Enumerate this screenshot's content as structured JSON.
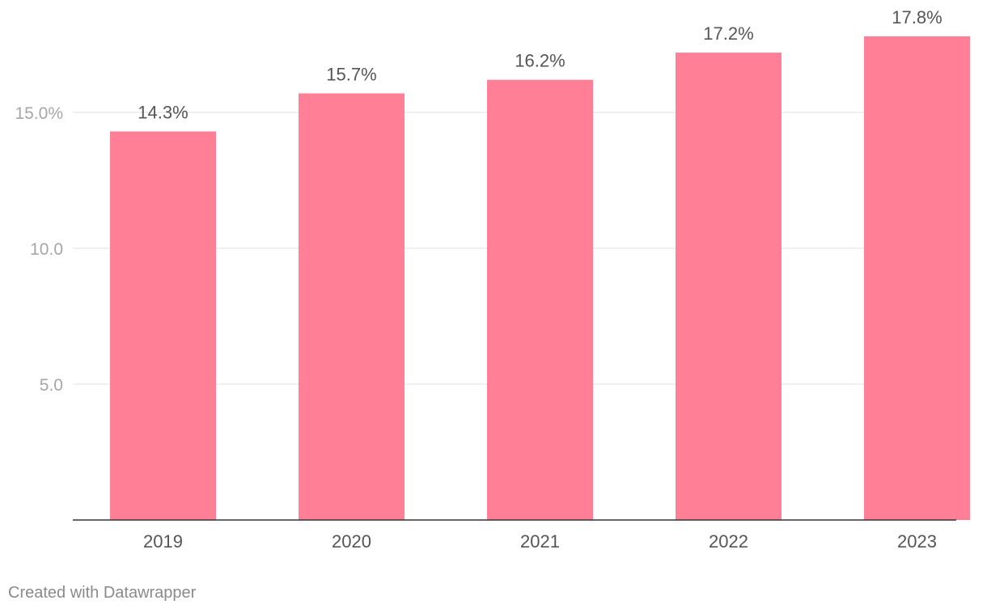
{
  "chart_data": {
    "type": "bar",
    "categories": [
      "2019",
      "2020",
      "2021",
      "2022",
      "2023"
    ],
    "values": [
      14.3,
      15.7,
      16.2,
      17.2,
      17.8
    ],
    "data_labels": [
      "14.3%",
      "15.7%",
      "16.2%",
      "17.2%",
      "17.8%"
    ],
    "title": "",
    "xlabel": "",
    "ylabel": "",
    "ylim": [
      0,
      17.8
    ],
    "y_ticks": [
      5,
      10,
      15
    ],
    "y_tick_labels": [
      "5.0",
      "10.0",
      "15.0%"
    ],
    "grid": true,
    "legend": "none",
    "bar_color": "#ff8096"
  },
  "footer": {
    "credit": "Created with Datawrapper"
  }
}
